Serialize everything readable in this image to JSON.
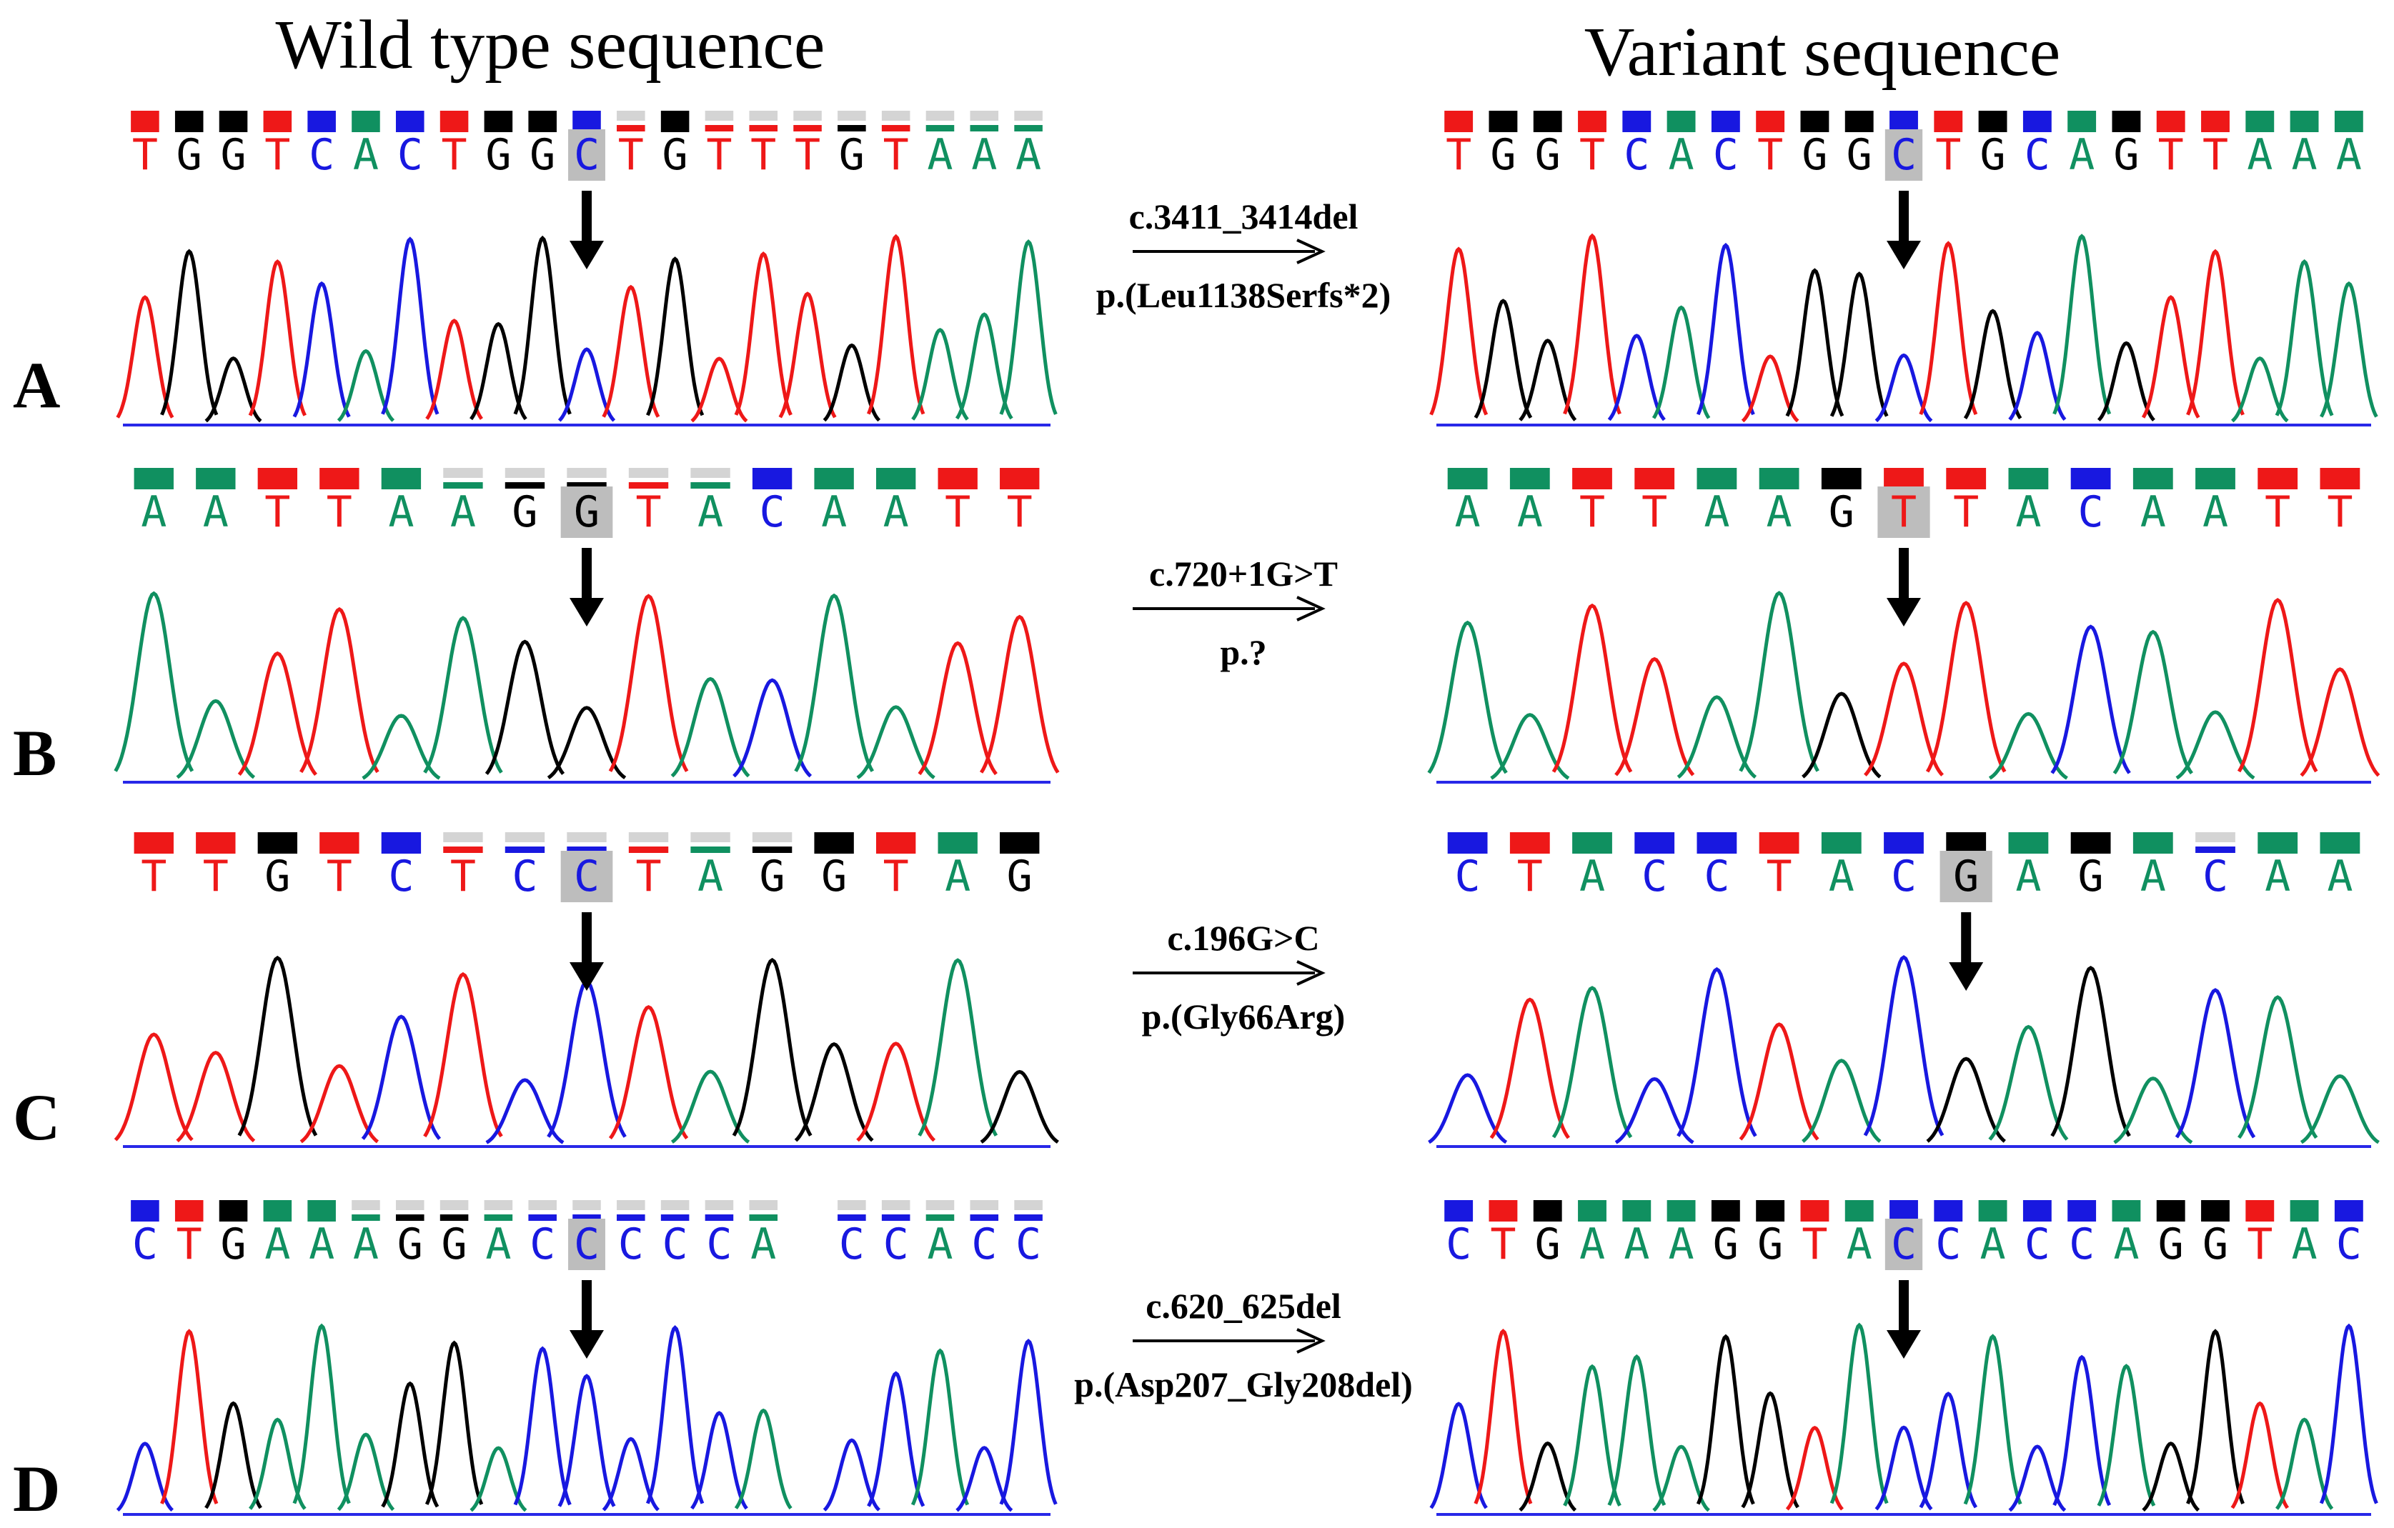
{
  "titles": {
    "wild": "Wild type sequence",
    "variant": "Variant sequence"
  },
  "colors": {
    "A": "#109060",
    "C": "#1818e0",
    "G": "#000000",
    "T": "#ee1818",
    "faint": "#d4d4d4",
    "highlight": "#bdbdbd",
    "baseline": "#2828e8",
    "arrow": "#000000"
  },
  "panels": [
    {
      "label": "A",
      "variant_name": "c.3411_3414del",
      "protein_change": "p.(Leu1138Serfs*2)",
      "wild": {
        "sequence": "TGGTCACTGGCTGTTTGTAAA",
        "arrow_index": 10,
        "quality_faint": [
          0,
          0,
          0,
          0,
          0,
          0,
          0,
          0,
          0,
          0,
          0,
          1,
          0,
          1,
          1,
          1,
          1,
          1,
          1,
          1,
          1
        ]
      },
      "variant": {
        "sequence": "TGGTCACTGGCTGCAGTTAAA",
        "arrow_index": 10,
        "quality_faint": [
          0,
          0,
          0,
          0,
          0,
          0,
          0,
          0,
          0,
          0,
          0,
          0,
          0,
          0,
          0,
          0,
          0,
          0,
          0,
          0,
          0
        ]
      }
    },
    {
      "label": "B",
      "variant_name": "c.720+1G>T",
      "protein_change": "p.?",
      "wild": {
        "sequence": "AATTAAGGTACAATT",
        "arrow_index": 7,
        "quality_faint": [
          0,
          0,
          0,
          0,
          0,
          1,
          1,
          1,
          1,
          1,
          0,
          0,
          0,
          0,
          0
        ]
      },
      "variant": {
        "sequence": "AATTAAGTTACAATT",
        "arrow_index": 7,
        "quality_faint": [
          0,
          0,
          0,
          0,
          0,
          0,
          0,
          0,
          0,
          0,
          0,
          0,
          0,
          0,
          0
        ]
      }
    },
    {
      "label": "C",
      "variant_name": "c.196G>C",
      "protein_change": "p.(Gly66Arg)",
      "wild": {
        "sequence": "TTGTCTCCTAGGTAG",
        "arrow_index": 7,
        "quality_faint": [
          0,
          0,
          0,
          0,
          0,
          1,
          1,
          1,
          1,
          1,
          1,
          0,
          0,
          0,
          0
        ]
      },
      "variant": {
        "sequence": "CTACCTACGAGACAA",
        "arrow_index": 8,
        "quality_faint": [
          0,
          0,
          0,
          0,
          0,
          0,
          0,
          0,
          0,
          0,
          0,
          0,
          1,
          0,
          0
        ]
      }
    },
    {
      "label": "D",
      "variant_name": "c.620_625del",
      "protein_change": "p.(Asp207_Gly208del)",
      "wild": {
        "sequence": "CTGAAAGGACCCCCA CCACC",
        "arrow_index": 10,
        "quality_faint": [
          0,
          0,
          0,
          0,
          0,
          1,
          1,
          1,
          1,
          1,
          1,
          1,
          1,
          1,
          1,
          1,
          1,
          1,
          1,
          1,
          1
        ]
      },
      "variant": {
        "sequence": "CTGAAAGGTACCACCAGGTAC",
        "arrow_index": 10,
        "quality_faint": [
          0,
          0,
          0,
          0,
          0,
          0,
          0,
          0,
          0,
          0,
          0,
          0,
          0,
          0,
          0,
          0,
          0,
          0,
          0,
          0,
          0
        ]
      }
    }
  ]
}
